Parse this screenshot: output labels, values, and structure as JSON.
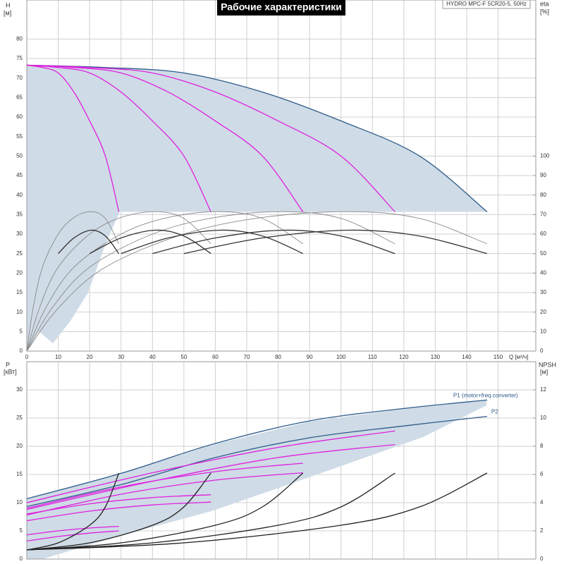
{
  "chart_data": [
    {
      "type": "line",
      "title": "Рабочие характеристики",
      "subtitle": "HYDRO MPC-F 5CR20-5, 50Hz",
      "y_label": "H",
      "y_unit": "[м]",
      "y2_label": "eta",
      "y2_unit": "[%]",
      "x_label": "Q [м³/ч]",
      "xlim": [
        0,
        162
      ],
      "xticks": [
        0,
        10,
        20,
        30,
        40,
        50,
        60,
        70,
        80,
        90,
        100,
        110,
        120,
        130,
        140,
        150
      ],
      "ylim": [
        0,
        90
      ],
      "yticks": [
        0,
        5,
        10,
        15,
        20,
        25,
        30,
        35,
        40,
        45,
        50,
        55,
        60,
        65,
        70,
        75,
        80
      ],
      "y2lim": [
        0,
        180
      ],
      "y2ticks": [
        0,
        10,
        20,
        30,
        40,
        50,
        60,
        70,
        80,
        90,
        100
      ],
      "grid": true,
      "series": [
        {
          "color": "#2d5b8a",
          "x": [
            0,
            25,
            50,
            75,
            100,
            125,
            146.5
          ],
          "values": [
            73.3,
            72.7,
            71.3,
            66.4,
            59,
            50,
            35.7
          ],
          "fill": true
        },
        {
          "color": "#e020e0",
          "x": [
            0,
            5,
            10,
            15,
            20,
            25,
            29.3
          ],
          "values": [
            73.3,
            72.7,
            71.3,
            66.4,
            59,
            50,
            35.7
          ]
        },
        {
          "color": "#e020e0",
          "x": [
            0,
            10,
            20,
            30,
            40,
            50,
            58.6
          ],
          "values": [
            73.3,
            72.7,
            71.3,
            66.4,
            59,
            50,
            35.7
          ]
        },
        {
          "color": "#e020e0",
          "x": [
            0,
            15,
            30,
            45,
            60,
            75,
            87.9
          ],
          "values": [
            73.3,
            72.7,
            71.3,
            66.4,
            59,
            50,
            35.7
          ]
        },
        {
          "color": "#e020e0",
          "x": [
            0,
            20,
            40,
            60,
            80,
            100,
            117.2
          ],
          "values": [
            73.3,
            72.7,
            71.3,
            66.4,
            59,
            50,
            35.7
          ]
        },
        {
          "color": "#8a8a8a",
          "axis": "y2",
          "x": [
            0,
            2,
            5,
            10,
            15,
            20.5,
            25,
            29.3
          ],
          "values": [
            0,
            22,
            43,
            60,
            68.5,
            71.5,
            68,
            55
          ]
        },
        {
          "color": "#8a8a8a",
          "axis": "y2",
          "x": [
            0,
            4,
            10,
            20,
            30,
            41,
            50,
            58.6
          ],
          "values": [
            0,
            22,
            43,
            60,
            68.5,
            71.5,
            68,
            55
          ]
        },
        {
          "color": "#8a8a8a",
          "axis": "y2",
          "x": [
            0,
            6,
            15,
            30,
            45,
            61.5,
            75,
            87.9
          ],
          "values": [
            0,
            22,
            43,
            60,
            68.5,
            71.5,
            68,
            55
          ]
        },
        {
          "color": "#8a8a8a",
          "axis": "y2",
          "x": [
            0,
            8,
            20,
            40,
            60,
            82,
            100,
            117.2
          ],
          "values": [
            0,
            22,
            43,
            60,
            68.5,
            71.5,
            68,
            55
          ]
        },
        {
          "color": "#8a8a8a",
          "axis": "y2",
          "x": [
            0,
            10,
            25,
            50,
            75,
            102.5,
            125,
            146.5
          ],
          "values": [
            0,
            22,
            43,
            60,
            68.5,
            71.5,
            68,
            55
          ]
        },
        {
          "color": "#333333",
          "axis": "y2",
          "x": [
            10,
            15,
            20.5,
            25,
            29.3
          ],
          "values": [
            50,
            58,
            62,
            59,
            50
          ]
        },
        {
          "color": "#333333",
          "axis": "y2",
          "x": [
            20,
            30,
            41,
            50,
            58.6
          ],
          "values": [
            50,
            58,
            62,
            59,
            50
          ]
        },
        {
          "color": "#333333",
          "axis": "y2",
          "x": [
            30,
            45,
            61.5,
            75,
            87.9
          ],
          "values": [
            50,
            58,
            62,
            59,
            50
          ]
        },
        {
          "color": "#333333",
          "axis": "y2",
          "x": [
            40,
            60,
            82,
            100,
            117.2
          ],
          "values": [
            50,
            58,
            62,
            59,
            50
          ]
        },
        {
          "color": "#333333",
          "axis": "y2",
          "x": [
            50,
            75,
            102.5,
            125,
            146.5
          ],
          "values": [
            50,
            58,
            62,
            59,
            50
          ]
        }
      ]
    },
    {
      "type": "line",
      "y_label": "P",
      "y_unit": "[кВт]",
      "y2_label": "NPSH",
      "y2_unit": "[м]",
      "xlim": [
        0,
        162
      ],
      "xticks": [
        0,
        10,
        20,
        30,
        40,
        50,
        60,
        70,
        80,
        90,
        100,
        110,
        120,
        130,
        140,
        150
      ],
      "ylim": [
        0,
        35
      ],
      "yticks": [
        0,
        5,
        10,
        15,
        20,
        25,
        30
      ],
      "y2lim": [
        0,
        14
      ],
      "y2ticks": [
        0,
        2,
        4,
        6,
        8,
        10,
        12
      ],
      "grid": true,
      "series": [
        {
          "color": "#2d5b8a",
          "x": [
            0,
            30,
            60,
            90,
            120,
            146.5
          ],
          "values": [
            10.7,
            15.2,
            20.5,
            24.5,
            26.7,
            28.2
          ],
          "label": "P1 (motor+freq.converter)"
        },
        {
          "color": "#2d5b8a",
          "x": [
            0,
            30,
            60,
            90,
            120,
            146.5
          ],
          "values": [
            9.3,
            13.2,
            18,
            21.5,
            23.6,
            25.3
          ],
          "label": "P2"
        },
        {
          "color": "#e020e0",
          "x": [
            0,
            10,
            20,
            29.3
          ],
          "values": [
            4.3,
            5,
            5.5,
            5.8
          ]
        },
        {
          "color": "#e020e0",
          "x": [
            0,
            10,
            20,
            29.3
          ],
          "values": [
            3.2,
            4,
            4.6,
            5
          ]
        },
        {
          "color": "#e020e0",
          "x": [
            0,
            20,
            40,
            58.6
          ],
          "values": [
            8,
            9.8,
            10.9,
            11.4
          ]
        },
        {
          "color": "#e020e0",
          "x": [
            0,
            20,
            40,
            58.6
          ],
          "values": [
            6.8,
            8.5,
            9.6,
            10.1
          ]
        },
        {
          "color": "#e020e0",
          "x": [
            0,
            30,
            60,
            87.9
          ],
          "values": [
            9,
            12.8,
            15.5,
            17
          ]
        },
        {
          "color": "#e020e0",
          "x": [
            0,
            30,
            60,
            87.9
          ],
          "values": [
            7.8,
            11.5,
            14,
            15.3
          ]
        },
        {
          "color": "#e020e0",
          "x": [
            0,
            40,
            80,
            117.2
          ],
          "values": [
            10,
            15.3,
            19.8,
            22.7
          ]
        },
        {
          "color": "#e020e0",
          "x": [
            0,
            40,
            80,
            117.2
          ],
          "values": [
            8.8,
            13.8,
            18,
            20.3
          ]
        },
        {
          "color": "#222222",
          "axis": "y2",
          "x": [
            0,
            10,
            20,
            25,
            29.3
          ],
          "values": [
            0.65,
            1.15,
            2.4,
            3.7,
            6.1
          ]
        },
        {
          "color": "#222222",
          "axis": "y2",
          "x": [
            0,
            20,
            40,
            50,
            58.6
          ],
          "values": [
            0.65,
            1.15,
            2.4,
            3.7,
            6.1
          ]
        },
        {
          "color": "#222222",
          "axis": "y2",
          "x": [
            0,
            30,
            60,
            75,
            87.9
          ],
          "values": [
            0.65,
            1.15,
            2.4,
            3.7,
            6.1
          ]
        },
        {
          "color": "#222222",
          "axis": "y2",
          "x": [
            0,
            40,
            80,
            100,
            117.2
          ],
          "values": [
            0.65,
            1.15,
            2.4,
            3.7,
            6.1
          ]
        },
        {
          "color": "#222222",
          "axis": "y2",
          "x": [
            0,
            50,
            100,
            125,
            146.5
          ],
          "values": [
            0.65,
            1.15,
            2.4,
            3.7,
            6.1
          ]
        }
      ]
    }
  ]
}
